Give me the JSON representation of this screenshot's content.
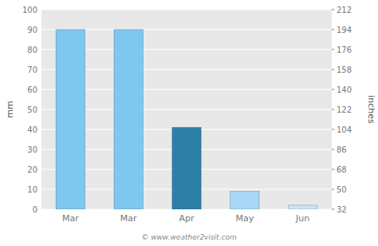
{
  "chart_data": {
    "type": "bar",
    "categories": [
      "Mar",
      "Mar",
      "Apr",
      "May",
      "Jun"
    ],
    "values": [
      90,
      90,
      41,
      9,
      2
    ],
    "colors": [
      "#7ec8f0",
      "#7ec8f0",
      "#2e7fa8",
      "#a8d8f5",
      "#c5e8f8"
    ],
    "ylabel": "mm",
    "y2label": "inches",
    "ylim": [
      0,
      100
    ],
    "yticks": [
      0,
      10,
      20,
      30,
      40,
      50,
      60,
      70,
      80,
      90,
      100
    ],
    "y2lim": [
      32,
      212
    ],
    "y2ticks": [
      32,
      50,
      68,
      86,
      104,
      122,
      140,
      158,
      176,
      194,
      212
    ],
    "grid": true,
    "annotations": [
      "© www.weather2visit.com"
    ]
  }
}
